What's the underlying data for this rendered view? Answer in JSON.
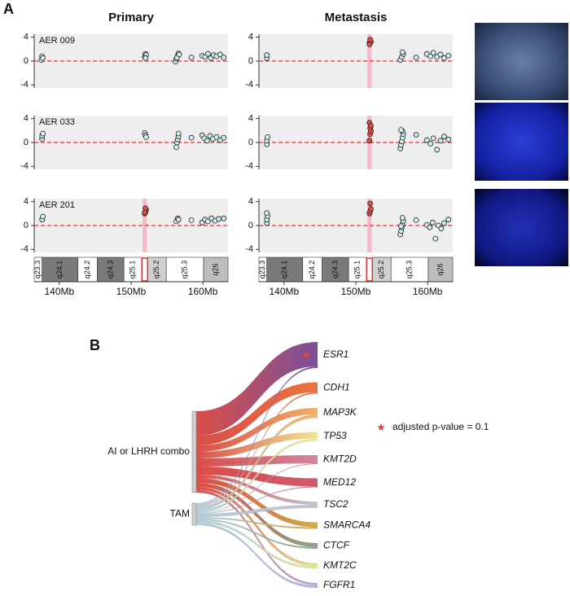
{
  "labels": [
    "A",
    "B"
  ],
  "chart_data": [
    {
      "type": "scatter",
      "title": "Primary",
      "sample": "AER 009",
      "xlim": [
        136.5,
        163.5
      ],
      "ylim": [
        -4.5,
        4.5
      ],
      "yticks": [
        -4,
        0,
        4
      ],
      "hline": 0,
      "series": [
        {
          "color": "#cfeeee",
          "x": [
            137.5,
            137.6,
            137.7,
            151.9,
            152.0,
            152.1,
            152.0,
            156.2,
            156.3,
            156.5,
            156.6,
            156.4,
            156.7,
            158.4,
            159.9,
            160.3,
            160.7,
            161.1,
            161.5,
            161.9,
            162.4,
            162.9
          ],
          "y": [
            0.2,
            0.8,
            0.5,
            0.7,
            1.2,
            1.0,
            0.5,
            -0.1,
            0.4,
            0.9,
            1.3,
            0.6,
            1.1,
            0.6,
            0.9,
            0.7,
            1.2,
            0.5,
            1.0,
            0.8,
            1.1,
            0.6
          ]
        }
      ]
    },
    {
      "type": "scatter",
      "title": "Metastasis",
      "xlim": [
        136.5,
        163.5
      ],
      "ylim": [
        -4.5,
        4.5
      ],
      "yticks": [
        -4,
        0,
        4
      ],
      "hline": 0,
      "highlight": [
        151.6,
        152.2
      ],
      "highlight_color": "#f6b8cc",
      "series": [
        {
          "color": "#cfeeee",
          "x": [
            137.6,
            137.6,
            156.2,
            156.4,
            156.6,
            156.5,
            158.4,
            159.9,
            160.4,
            160.8,
            161.3,
            161.8,
            162.3,
            162.9
          ],
          "y": [
            0.5,
            1.0,
            0.2,
            0.7,
            1.2,
            1.5,
            0.6,
            1.2,
            0.8,
            1.4,
            0.7,
            1.1,
            0.5,
            0.9
          ]
        },
        {
          "color": "#e0504a",
          "x": [
            151.9,
            152.0,
            152.1,
            152.0,
            151.9
          ],
          "y": [
            3.0,
            3.4,
            3.2,
            3.6,
            2.8
          ]
        }
      ]
    },
    {
      "type": "scatter",
      "sample": "AER 033",
      "xlim": [
        136.5,
        163.5
      ],
      "ylim": [
        -4.5,
        4.5
      ],
      "yticks": [
        -4,
        0,
        4
      ],
      "hline": 0,
      "series": [
        {
          "color": "#cfeeee",
          "x": [
            137.6,
            137.6,
            137.7,
            151.9,
            152.0,
            152.1,
            156.3,
            156.4,
            156.5,
            156.6,
            156.6,
            158.4,
            159.9,
            160.2,
            160.6,
            161.0,
            161.4,
            161.9,
            162.4,
            162.9
          ],
          "y": [
            0.6,
            1.1,
            1.5,
            1.6,
            1.2,
            0.9,
            -0.8,
            0.0,
            0.5,
            1.0,
            1.5,
            0.8,
            1.2,
            0.7,
            0.3,
            1.1,
            0.6,
            0.9,
            0.4,
            0.8
          ]
        }
      ]
    },
    {
      "type": "scatter",
      "xlim": [
        136.5,
        163.5
      ],
      "ylim": [
        -4.5,
        4.5
      ],
      "yticks": [
        -4,
        0,
        4
      ],
      "hline": 0,
      "highlight": [
        151.6,
        152.2
      ],
      "highlight_color": "#f6b8cc",
      "series": [
        {
          "color": "#cfeeee",
          "x": [
            137.6,
            137.6,
            137.7,
            156.2,
            156.3,
            156.4,
            156.5,
            156.6,
            156.5,
            156.3,
            158.4,
            159.9,
            160.4,
            160.8,
            161.3,
            161.8,
            162.3,
            162.9
          ],
          "y": [
            -0.3,
            0.3,
            0.9,
            -1.0,
            -0.4,
            0.2,
            0.8,
            1.4,
            1.9,
            2.1,
            1.3,
            0.4,
            -0.2,
            0.7,
            -1.2,
            0.3,
            1.0,
            0.5
          ]
        },
        {
          "color": "#e0504a",
          "x": [
            151.9,
            152.0,
            152.1,
            152.0,
            151.9,
            152.1
          ],
          "y": [
            0.3,
            1.4,
            1.9,
            2.4,
            3.3,
            2.8
          ]
        }
      ]
    },
    {
      "type": "scatter",
      "sample": "AER 201",
      "xlim": [
        136.5,
        163.5
      ],
      "ylim": [
        -4.5,
        4.5
      ],
      "yticks": [
        -4,
        0,
        4
      ],
      "hline": 0,
      "highlight": [
        151.6,
        152.2
      ],
      "highlight_color": "#f6b8cc",
      "xticks": [
        {
          "value": 140,
          "label": "140Mb"
        },
        {
          "value": 150,
          "label": "150Mb"
        },
        {
          "value": 160,
          "label": "160Mb"
        }
      ],
      "cytobands": [
        {
          "name": "q23.3",
          "start": 136.5,
          "end": 137.6,
          "color": "#ffffff"
        },
        {
          "name": "q24.1",
          "start": 137.6,
          "end": 142.6,
          "color": "#7a7a7a"
        },
        {
          "name": "q24.2",
          "start": 142.6,
          "end": 145.3,
          "color": "#ffffff"
        },
        {
          "name": "q24.3",
          "start": 145.3,
          "end": 149.0,
          "color": "#7a7a7a"
        },
        {
          "name": "q25.1",
          "start": 149.0,
          "end": 151.5,
          "color": "#ffffff"
        },
        {
          "name": "q25.2",
          "start": 152.3,
          "end": 154.9,
          "color": "#d0d0d0"
        },
        {
          "name": "q25.3",
          "start": 154.9,
          "end": 160.1,
          "color": "#ffffff"
        },
        {
          "name": "q26",
          "start": 160.1,
          "end": 163.5,
          "color": "#bdbdbd"
        }
      ],
      "cytoband_mark": [
        151.5,
        152.3
      ],
      "series": [
        {
          "color": "#cfeeee",
          "x": [
            137.6,
            137.7,
            156.3,
            156.5,
            156.6,
            158.4,
            159.9,
            160.3,
            160.7,
            161.2,
            161.7,
            162.2,
            162.9
          ],
          "y": [
            1.0,
            1.5,
            0.7,
            1.2,
            1.0,
            0.9,
            0.5,
            1.0,
            0.7,
            1.2,
            0.8,
            1.1,
            1.2
          ]
        },
        {
          "color": "#e0504a",
          "x": [
            151.9,
            152.0,
            152.1,
            152.0,
            151.9
          ],
          "y": [
            2.0,
            2.3,
            2.6,
            2.9,
            2.2
          ]
        }
      ]
    },
    {
      "type": "scatter",
      "xlim": [
        136.5,
        163.5
      ],
      "ylim": [
        -4.5,
        4.5
      ],
      "yticks": [
        -4,
        0,
        4
      ],
      "hline": 0,
      "highlight": [
        151.6,
        152.2
      ],
      "highlight_color": "#f6b8cc",
      "xticks": [
        {
          "value": 140,
          "label": "140Mb"
        },
        {
          "value": 150,
          "label": "150Mb"
        },
        {
          "value": 160,
          "label": "160Mb"
        }
      ],
      "cytobands": [
        {
          "name": "q23.3",
          "start": 136.5,
          "end": 137.6,
          "color": "#ffffff"
        },
        {
          "name": "q24.1",
          "start": 137.6,
          "end": 142.6,
          "color": "#7a7a7a"
        },
        {
          "name": "q24.2",
          "start": 142.6,
          "end": 145.3,
          "color": "#ffffff"
        },
        {
          "name": "q24.3",
          "start": 145.3,
          "end": 149.0,
          "color": "#7a7a7a"
        },
        {
          "name": "q25.1",
          "start": 149.0,
          "end": 151.5,
          "color": "#ffffff"
        },
        {
          "name": "q25.2",
          "start": 152.3,
          "end": 154.9,
          "color": "#d0d0d0"
        },
        {
          "name": "q25.3",
          "start": 154.9,
          "end": 160.1,
          "color": "#ffffff"
        },
        {
          "name": "q26",
          "start": 160.1,
          "end": 163.5,
          "color": "#bdbdbd"
        }
      ],
      "cytoband_mark": [
        151.5,
        152.3
      ],
      "series": [
        {
          "color": "#cfeeee",
          "x": [
            137.6,
            137.6,
            137.7,
            137.6,
            156.2,
            156.3,
            156.4,
            156.5,
            156.6,
            156.5,
            156.3,
            158.4,
            159.9,
            160.3,
            160.7,
            161.1,
            161.5,
            161.9,
            162.3,
            162.9
          ],
          "y": [
            0.4,
            1.0,
            1.6,
            2.1,
            -1.5,
            -0.9,
            -0.3,
            0.2,
            0.8,
            1.3,
            -0.1,
            0.9,
            0.1,
            -0.3,
            0.5,
            -2.2,
            0.0,
            -0.5,
            0.4,
            1.0
          ]
        },
        {
          "color": "#e0504a",
          "x": [
            151.9,
            152.0,
            152.1,
            152.0
          ],
          "y": [
            2.0,
            2.4,
            2.8,
            3.7
          ]
        }
      ]
    },
    {
      "type": "sankey",
      "sources": [
        {
          "name": "AI or LHRH combo",
          "color": "#d63a34",
          "flows": [
            30,
            12,
            8,
            8,
            10,
            10,
            4,
            6,
            5,
            4,
            3
          ]
        },
        {
          "name": "TAM",
          "color": "#a9c6d6",
          "flows": [
            2,
            2,
            4,
            3,
            1,
            1,
            4,
            2,
            2,
            3,
            3
          ]
        }
      ],
      "targets": [
        {
          "name": "ESR1",
          "color": "#6b3c8e",
          "starred": true
        },
        {
          "name": "CDH1",
          "color": "#e8642c"
        },
        {
          "name": "MAP3K",
          "color": "#f0a75a"
        },
        {
          "name": "TP53",
          "color": "#efe48c"
        },
        {
          "name": "KMT2D",
          "color": "#c97a94"
        },
        {
          "name": "MED12",
          "color": "#c9485e"
        },
        {
          "name": "TSC2",
          "color": "#bcbccb"
        },
        {
          "name": "SMARCA4",
          "color": "#c9a234"
        },
        {
          "name": "CTCF",
          "color": "#7c9c7a"
        },
        {
          "name": "KMT2C",
          "color": "#dce38c"
        },
        {
          "name": "FGFR1",
          "color": "#abaad2"
        }
      ],
      "marker_legend": "adjusted p-value = 0.1",
      "marker_color": "#e0483a"
    }
  ]
}
